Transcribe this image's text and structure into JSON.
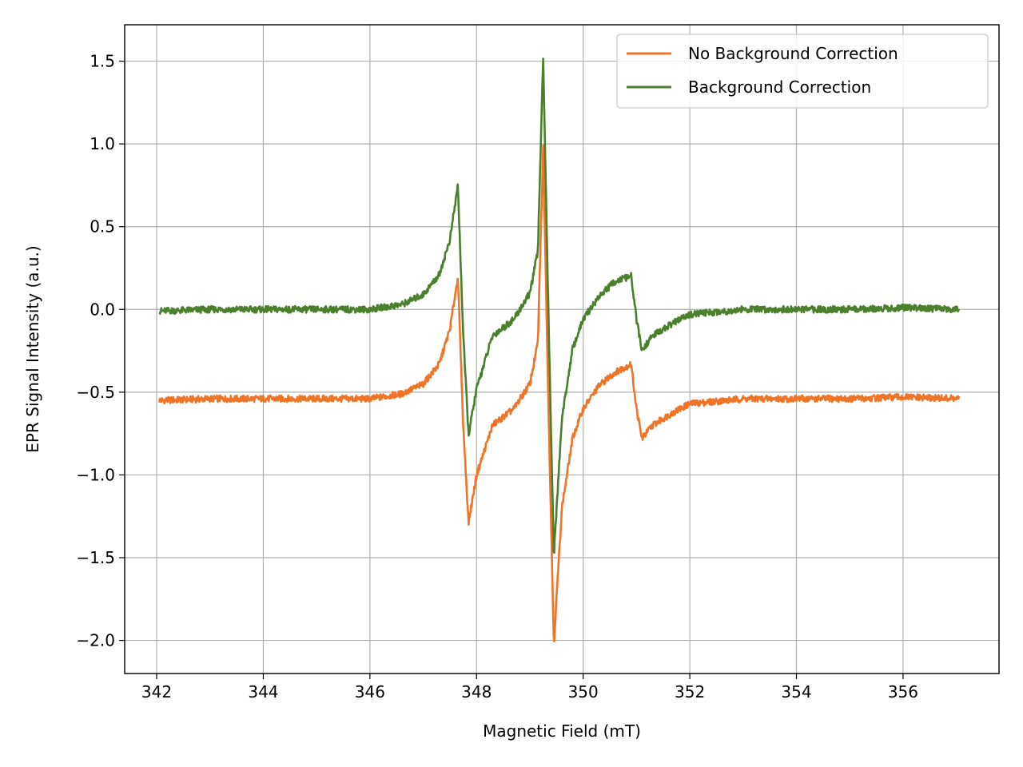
{
  "chart_data": {
    "type": "line",
    "title": "",
    "xlabel": "Magnetic Field (mT)",
    "ylabel": "EPR Signal Intensity (a.u.)",
    "xlim": [
      341.4,
      357.8
    ],
    "ylim": [
      -2.2,
      1.72
    ],
    "xticks": [
      342,
      344,
      346,
      348,
      350,
      352,
      354,
      356
    ],
    "yticks": [
      -2.0,
      -1.5,
      -1.0,
      -0.5,
      0.0,
      0.5,
      1.0,
      1.5
    ],
    "xtick_labels": [
      "342",
      "344",
      "346",
      "348",
      "350",
      "352",
      "354",
      "356"
    ],
    "ytick_labels": [
      "−2.0",
      "−1.5",
      "−1.0",
      "−0.5",
      "0.0",
      "0.5",
      "1.0",
      "1.5"
    ],
    "grid": true,
    "legend_position": "top-right",
    "series": [
      {
        "name": "No Background Correction",
        "color": "#f07427",
        "x": [
          342.05,
          343.0,
          344.0,
          345.0,
          346.0,
          346.6,
          347.0,
          347.3,
          347.5,
          347.65,
          347.75,
          347.85,
          348.0,
          348.3,
          348.7,
          349.0,
          349.15,
          349.25,
          349.35,
          349.45,
          349.6,
          349.8,
          350.0,
          350.3,
          350.6,
          350.9,
          351.0,
          351.1,
          351.3,
          351.7,
          352.0,
          353.0,
          354.0,
          355.0,
          356.0,
          357.05
        ],
        "y": [
          -0.55,
          -0.54,
          -0.54,
          -0.54,
          -0.54,
          -0.51,
          -0.45,
          -0.33,
          -0.12,
          0.2,
          -0.7,
          -1.29,
          -1.0,
          -0.7,
          -0.6,
          -0.45,
          -0.2,
          0.98,
          -0.6,
          -2.02,
          -1.2,
          -0.78,
          -0.6,
          -0.46,
          -0.38,
          -0.33,
          -0.6,
          -0.78,
          -0.7,
          -0.62,
          -0.57,
          -0.54,
          -0.54,
          -0.54,
          -0.53,
          -0.54
        ]
      },
      {
        "name": "Background Correction",
        "color": "#4a7f2c",
        "x": [
          342.05,
          343.0,
          344.0,
          345.0,
          346.0,
          346.6,
          347.0,
          347.3,
          347.5,
          347.65,
          347.75,
          347.85,
          348.0,
          348.3,
          348.7,
          349.0,
          349.15,
          349.25,
          349.35,
          349.45,
          349.6,
          349.8,
          350.0,
          350.3,
          350.6,
          350.9,
          351.0,
          351.1,
          351.3,
          351.7,
          352.0,
          353.0,
          354.0,
          355.0,
          356.0,
          357.05
        ],
        "y": [
          -0.01,
          0.0,
          0.0,
          0.0,
          0.0,
          0.03,
          0.09,
          0.21,
          0.42,
          0.75,
          -0.15,
          -0.76,
          -0.48,
          -0.16,
          -0.06,
          0.1,
          0.35,
          1.53,
          -0.05,
          -1.49,
          -0.66,
          -0.24,
          -0.06,
          0.08,
          0.17,
          0.2,
          -0.06,
          -0.25,
          -0.16,
          -0.08,
          -0.03,
          0.0,
          0.0,
          0.0,
          0.01,
          0.0
        ]
      }
    ]
  }
}
